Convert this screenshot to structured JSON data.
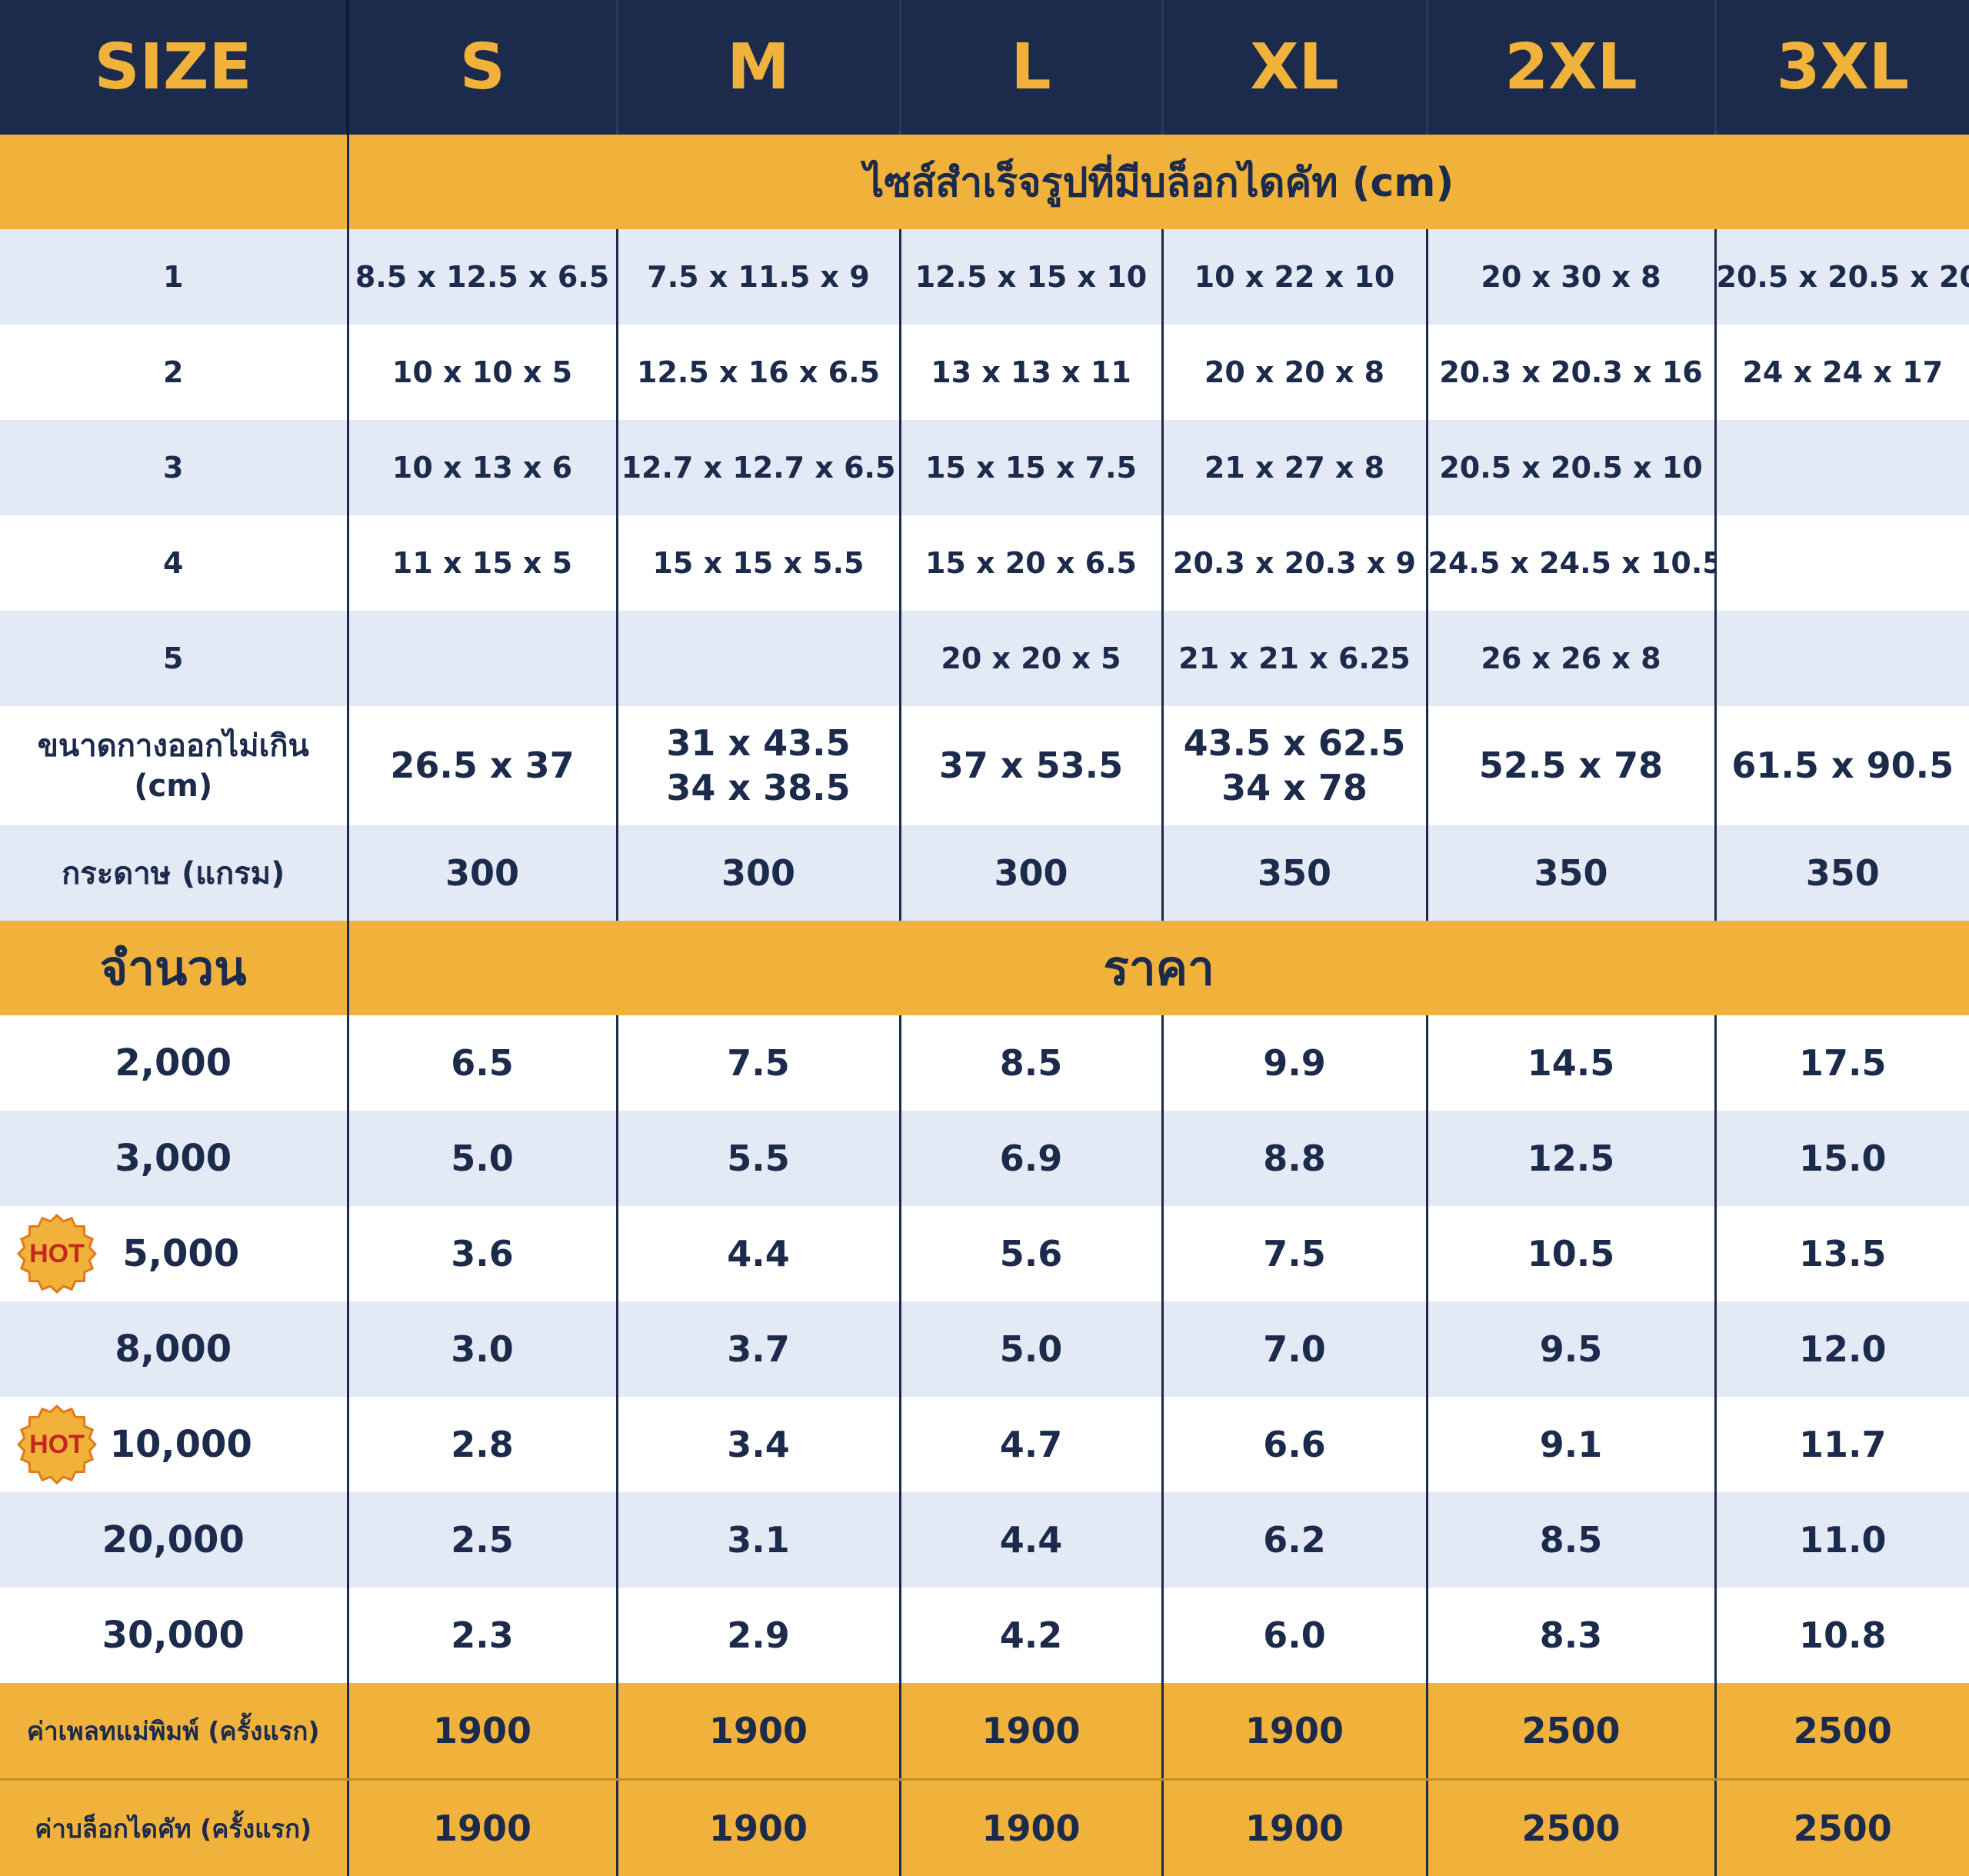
{
  "header": {
    "size_label": "SIZE",
    "sizes": [
      "S",
      "M",
      "L",
      "XL",
      "2XL",
      "3XL"
    ]
  },
  "section_dims": {
    "title": "ไซส์สำเร็จรูปที่มีบล็อกไดคัท (cm)"
  },
  "dim_rows": [
    {
      "label": "1",
      "values": [
        "8.5 x 12.5 x 6.5",
        "7.5 x 11.5 x 9",
        "12.5 x 15 x 10",
        "10 x 22 x 10",
        "20 x 30 x 8",
        "20.5 x 20.5 x 20"
      ]
    },
    {
      "label": "2",
      "values": [
        "10 x 10 x 5",
        "12.5 x 16 x 6.5",
        "13 x 13 x 11",
        "20 x 20 x 8",
        "20.3 x 20.3 x 16",
        "24 x 24 x 17"
      ]
    },
    {
      "label": "3",
      "values": [
        "10 x 13 x 6",
        "12.7 x 12.7 x 6.5",
        "15 x 15 x 7.5",
        "21 x 27 x 8",
        "20.5 x 20.5 x 10",
        ""
      ]
    },
    {
      "label": "4",
      "values": [
        "11 x 15 x 5",
        "15 x 15 x 5.5",
        "15 x 20 x 6.5",
        "20.3 x 20.3 x 9",
        "24.5 x 24.5 x 10.5",
        ""
      ]
    },
    {
      "label": "5",
      "values": [
        "",
        "",
        "20 x 20 x 5",
        "21 x 21 x 6.25",
        "26 x 26 x 8",
        ""
      ]
    }
  ],
  "extent_row": {
    "label_line1": "ขนาดกางออกไม่เกิน",
    "label_line2": "(cm)",
    "values": [
      [
        "26.5 x 37"
      ],
      [
        "31 x 43.5",
        "34 x 38.5"
      ],
      [
        "37 x 53.5"
      ],
      [
        "43.5 x 62.5",
        "34 x 78"
      ],
      [
        "52.5 x 78"
      ],
      [
        "61.5 x 90.5"
      ]
    ]
  },
  "paper_row": {
    "label": "กระดาษ (แกรม)",
    "values": [
      "300",
      "300",
      "300",
      "350",
      "350",
      "350"
    ]
  },
  "section_price": {
    "qty_label": "จำนวน",
    "title": "ราคา"
  },
  "price_rows": [
    {
      "qty": "2,000",
      "hot": false,
      "values": [
        "6.5",
        "7.5",
        "8.5",
        "9.9",
        "14.5",
        "17.5"
      ]
    },
    {
      "qty": "3,000",
      "hot": false,
      "values": [
        "5.0",
        "5.5",
        "6.9",
        "8.8",
        "12.5",
        "15.0"
      ]
    },
    {
      "qty": "5,000",
      "hot": true,
      "values": [
        "3.6",
        "4.4",
        "5.6",
        "7.5",
        "10.5",
        "13.5"
      ]
    },
    {
      "qty": "8,000",
      "hot": false,
      "values": [
        "3.0",
        "3.7",
        "5.0",
        "7.0",
        "9.5",
        "12.0"
      ]
    },
    {
      "qty": "10,000",
      "hot": true,
      "values": [
        "2.8",
        "3.4",
        "4.7",
        "6.6",
        "9.1",
        "11.7"
      ]
    },
    {
      "qty": "20,000",
      "hot": false,
      "values": [
        "2.5",
        "3.1",
        "4.4",
        "6.2",
        "8.5",
        "11.0"
      ]
    },
    {
      "qty": "30,000",
      "hot": false,
      "values": [
        "2.3",
        "2.9",
        "4.2",
        "6.0",
        "8.3",
        "10.8"
      ]
    }
  ],
  "hot_badge": {
    "text": "HOT",
    "fill": "#f0b23a",
    "stroke": "#e07a1a",
    "text_color": "#c4281c"
  },
  "fee_rows": [
    {
      "label": "ค่าเพลทแม่พิมพ์ (ครั้งแรก)",
      "values": [
        "1900",
        "1900",
        "1900",
        "1900",
        "2500",
        "2500"
      ]
    },
    {
      "label": "ค่าบล็อกไดคัท (ครั้งแรก)",
      "values": [
        "1900",
        "1900",
        "1900",
        "1900",
        "2500",
        "2500"
      ]
    }
  ],
  "colors": {
    "navy": "#1c2b4c",
    "gold": "#f0b23a",
    "light_row": "#e3e9f5"
  }
}
